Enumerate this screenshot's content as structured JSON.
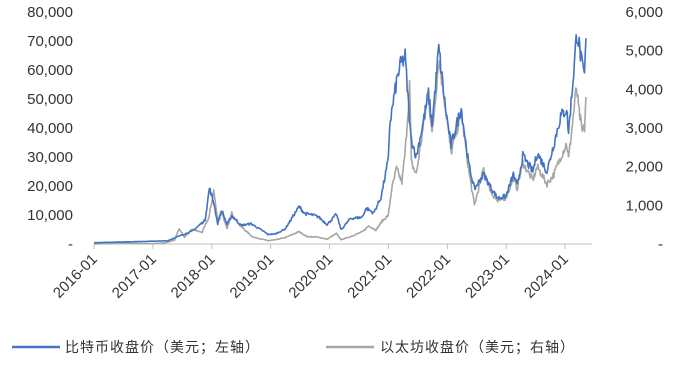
{
  "chart_data": {
    "type": "line",
    "title": "",
    "xlabel": "",
    "x_ticks": [
      "2016-01",
      "2017-01",
      "2018-01",
      "2019-01",
      "2020-01",
      "2021-01",
      "2022-01",
      "2023-01",
      "2024-01"
    ],
    "x_range": [
      "2016-01-01",
      "2024-05-01"
    ],
    "y_left": {
      "range": [
        0,
        80000
      ],
      "ticks": [
        "-",
        "10,000",
        "20,000",
        "30,000",
        "40,000",
        "50,000",
        "60,000",
        "70,000",
        "80,000"
      ]
    },
    "y_right": {
      "range": [
        0,
        6000
      ],
      "ticks": [
        "-",
        "1,000",
        "2,000",
        "3,000",
        "4,000",
        "5,000",
        "6,000"
      ]
    },
    "grid": false,
    "legend_position": "bottom",
    "series": [
      {
        "name": "比特币收盘价（美元；左轴）",
        "axis": "left",
        "color": "#4472C4",
        "points": [
          [
            "2016-01-01",
            430
          ],
          [
            "2016-06-15",
            700
          ],
          [
            "2016-12-31",
            960
          ],
          [
            "2017-04-01",
            1100
          ],
          [
            "2017-06-01",
            2500
          ],
          [
            "2017-09-01",
            4400
          ],
          [
            "2017-11-20",
            8200
          ],
          [
            "2017-12-17",
            19300
          ],
          [
            "2018-01-15",
            13800
          ],
          [
            "2018-02-06",
            7000
          ],
          [
            "2018-03-05",
            11500
          ],
          [
            "2018-04-05",
            6800
          ],
          [
            "2018-05-05",
            9700
          ],
          [
            "2018-07-01",
            6400
          ],
          [
            "2018-09-01",
            7000
          ],
          [
            "2018-11-20",
            4300
          ],
          [
            "2018-12-15",
            3300
          ],
          [
            "2019-02-01",
            3500
          ],
          [
            "2019-04-01",
            5200
          ],
          [
            "2019-06-26",
            12900
          ],
          [
            "2019-08-01",
            10500
          ],
          [
            "2019-09-20",
            10000
          ],
          [
            "2019-10-26",
            9300
          ],
          [
            "2019-12-18",
            6700
          ],
          [
            "2020-02-13",
            10300
          ],
          [
            "2020-03-13",
            4900
          ],
          [
            "2020-05-10",
            8800
          ],
          [
            "2020-07-20",
            9200
          ],
          [
            "2020-08-17",
            12300
          ],
          [
            "2020-10-01",
            10700
          ],
          [
            "2020-11-15",
            16000
          ],
          [
            "2020-12-31",
            29000
          ],
          [
            "2021-01-08",
            40900
          ],
          [
            "2021-02-20",
            56000
          ],
          [
            "2021-03-13",
            61200
          ],
          [
            "2021-04-14",
            64600
          ],
          [
            "2021-05-19",
            37000
          ],
          [
            "2021-06-22",
            30000
          ],
          [
            "2021-08-01",
            41000
          ],
          [
            "2021-09-06",
            52000
          ],
          [
            "2021-09-28",
            41000
          ],
          [
            "2021-11-09",
            67500
          ],
          [
            "2021-12-20",
            47000
          ],
          [
            "2022-01-24",
            34000
          ],
          [
            "2022-03-28",
            47000
          ],
          [
            "2022-05-12",
            28000
          ],
          [
            "2022-06-18",
            19000
          ],
          [
            "2022-08-15",
            24000
          ],
          [
            "2022-09-30",
            19300
          ],
          [
            "2022-11-09",
            15800
          ],
          [
            "2022-12-31",
            16500
          ],
          [
            "2023-02-15",
            24000
          ],
          [
            "2023-03-10",
            20000
          ],
          [
            "2023-04-14",
            30400
          ],
          [
            "2023-06-15",
            25000
          ],
          [
            "2023-07-13",
            31400
          ],
          [
            "2023-09-11",
            25000
          ],
          [
            "2023-10-24",
            34500
          ],
          [
            "2023-12-05",
            44000
          ],
          [
            "2024-01-11",
            46500
          ],
          [
            "2024-01-23",
            38500
          ],
          [
            "2024-02-28",
            62000
          ],
          [
            "2024-03-14",
            73000
          ],
          [
            "2024-03-25",
            70000
          ],
          [
            "2024-04-17",
            61000
          ],
          [
            "2024-05-01",
            58000
          ],
          [
            "2024-05-10",
            71000
          ]
        ]
      },
      {
        "name": "以太坊收盘价（美元；右轴）",
        "axis": "right",
        "color": "#A6A6A6",
        "points": [
          [
            "2016-01-01",
            1
          ],
          [
            "2016-06-17",
            20
          ],
          [
            "2016-12-31",
            8
          ],
          [
            "2017-03-15",
            30
          ],
          [
            "2017-05-15",
            100
          ],
          [
            "2017-06-12",
            400
          ],
          [
            "2017-07-15",
            180
          ],
          [
            "2017-09-01",
            380
          ],
          [
            "2017-11-01",
            300
          ],
          [
            "2017-12-15",
            700
          ],
          [
            "2018-01-13",
            1380
          ],
          [
            "2018-02-06",
            600
          ],
          [
            "2018-03-01",
            870
          ],
          [
            "2018-04-05",
            380
          ],
          [
            "2018-05-05",
            800
          ],
          [
            "2018-07-01",
            450
          ],
          [
            "2018-09-12",
            180
          ],
          [
            "2018-11-25",
            110
          ],
          [
            "2018-12-15",
            85
          ],
          [
            "2019-02-01",
            110
          ],
          [
            "2019-04-01",
            165
          ],
          [
            "2019-06-26",
            320
          ],
          [
            "2019-08-15",
            190
          ],
          [
            "2019-10-15",
            180
          ],
          [
            "2019-12-18",
            125
          ],
          [
            "2020-02-13",
            270
          ],
          [
            "2020-03-13",
            110
          ],
          [
            "2020-05-15",
            200
          ],
          [
            "2020-07-25",
            320
          ],
          [
            "2020-09-01",
            470
          ],
          [
            "2020-10-15",
            360
          ],
          [
            "2020-11-24",
            600
          ],
          [
            "2020-12-31",
            740
          ],
          [
            "2021-01-20",
            1400
          ],
          [
            "2021-02-20",
            1950
          ],
          [
            "2021-03-25",
            1600
          ],
          [
            "2021-04-15",
            2400
          ],
          [
            "2021-05-12",
            4100
          ],
          [
            "2021-05-23",
            2100
          ],
          [
            "2021-06-22",
            1800
          ],
          [
            "2021-08-15",
            3300
          ],
          [
            "2021-09-06",
            3900
          ],
          [
            "2021-09-28",
            2800
          ],
          [
            "2021-11-09",
            4800
          ],
          [
            "2021-12-10",
            3900
          ],
          [
            "2022-01-24",
            2350
          ],
          [
            "2022-03-28",
            3400
          ],
          [
            "2022-05-12",
            1950
          ],
          [
            "2022-06-18",
            1000
          ],
          [
            "2022-08-14",
            1950
          ],
          [
            "2022-09-30",
            1330
          ],
          [
            "2022-11-09",
            1100
          ],
          [
            "2022-12-31",
            1200
          ],
          [
            "2023-02-15",
            1700
          ],
          [
            "2023-03-10",
            1430
          ],
          [
            "2023-04-14",
            2100
          ],
          [
            "2023-06-15",
            1650
          ],
          [
            "2023-07-13",
            2000
          ],
          [
            "2023-09-11",
            1550
          ],
          [
            "2023-10-24",
            1800
          ],
          [
            "2023-12-05",
            2250
          ],
          [
            "2024-01-11",
            2600
          ],
          [
            "2024-01-23",
            2200
          ],
          [
            "2024-03-12",
            4050
          ],
          [
            "2024-03-25",
            3500
          ],
          [
            "2024-04-17",
            2900
          ],
          [
            "2024-05-01",
            3000
          ],
          [
            "2024-05-10",
            3800
          ]
        ]
      }
    ]
  }
}
